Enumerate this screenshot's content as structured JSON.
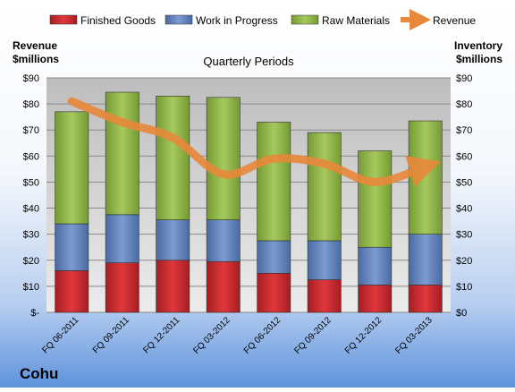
{
  "chart_data": {
    "type": "bar",
    "title": "Quarterly Periods",
    "left_axis_label": [
      "Revenue",
      "$millions"
    ],
    "right_axis_label": [
      "Inventory",
      "$millions"
    ],
    "categories": [
      "FQ 06-2011",
      "FQ 09-2011",
      "FQ 12-2011",
      "FQ 03-2012",
      "FQ 06-2012",
      "FQ 09-2012",
      "FQ 12-2012",
      "FQ 03-2013"
    ],
    "left_ticks": [
      "$-",
      "$10",
      "$20",
      "$30",
      "$40",
      "$50",
      "$60",
      "$70",
      "$80",
      "$90"
    ],
    "right_ticks": [
      "$0",
      "$10",
      "$20",
      "$30",
      "$40",
      "$50",
      "$60",
      "$70",
      "$80",
      "$90"
    ],
    "ylim": [
      0,
      90
    ],
    "stacked": true,
    "series": [
      {
        "name": "Finished Goods",
        "color": "#c0262b",
        "values": [
          16,
          19,
          20,
          19.5,
          15,
          12.5,
          10.5,
          10.5
        ]
      },
      {
        "name": "Work in Progress",
        "color": "#5d7fb8",
        "values": [
          18,
          18.5,
          15.5,
          16,
          12.5,
          15,
          14.5,
          19.5
        ]
      },
      {
        "name": "Raw Materials",
        "color": "#8db046",
        "values": [
          43,
          47,
          47.5,
          47,
          45.5,
          41.5,
          37,
          43.5
        ]
      }
    ],
    "line_series": {
      "name": "Revenue",
      "color": "#e8883a",
      "values": [
        81,
        73,
        67,
        53,
        59,
        57,
        50,
        56
      ]
    },
    "company": "Cohu"
  }
}
